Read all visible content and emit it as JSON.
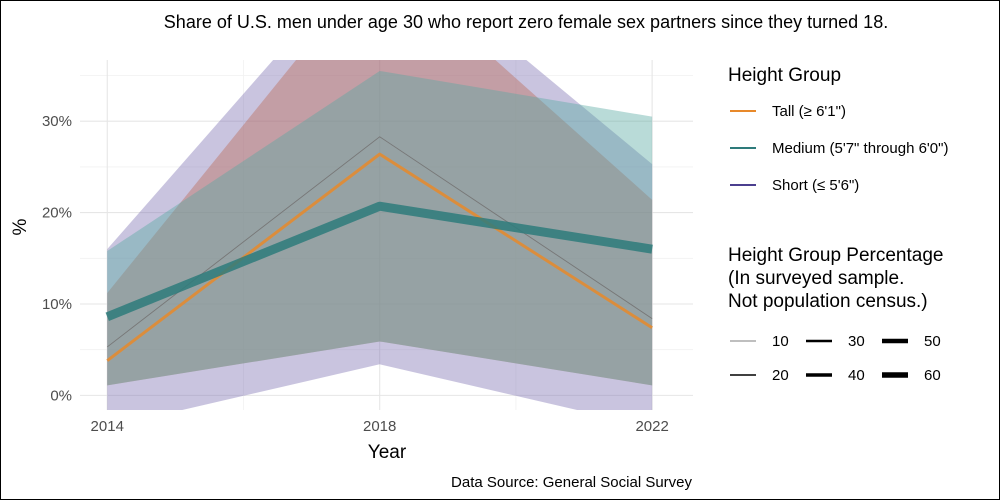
{
  "chart_data": {
    "type": "line",
    "title": "Share of U.S. men under age 30 who report zero female sex partners since they turned 18.",
    "xlabel": "Year",
    "ylabel": "%",
    "caption": "Data Source: General Social Survey",
    "x": [
      2014,
      2018,
      2022
    ],
    "x_ticks": [
      "2014",
      "2018",
      "2022"
    ],
    "xlim": [
      2013.6,
      2022.6
    ],
    "ylim": [
      -1.6,
      36.7
    ],
    "y_ticks": [
      0,
      10,
      20,
      30
    ],
    "y_tick_labels": [
      "0%",
      "10%",
      "20%",
      "30%"
    ],
    "grid": true,
    "legend_position": "right",
    "color_legend_title": "Height Group",
    "size_legend_title": [
      "Height Group Percentage",
      "(In surveyed sample.",
      "Not population census.)"
    ],
    "size_legend_entries": [
      "10",
      "30",
      "50",
      "20",
      "40",
      "60"
    ],
    "overall_line": {
      "values": [
        5.3,
        28.3,
        8.4
      ],
      "color": "#777777"
    },
    "series": [
      {
        "name": "Short (≤ 5'6\")",
        "color": "#4B3F8F",
        "ribbon_color": "#7E73B3",
        "values": [
          null,
          null,
          null
        ],
        "lower": [
          -3.5,
          3.4,
          -3.5
        ],
        "upper": [
          16.0,
          50.0,
          25.3
        ],
        "line_width": 1
      },
      {
        "name": "Tall (≥ 6'1\")",
        "color": "#E8892A",
        "ribbon_color": "#BC6A55",
        "values": [
          3.8,
          26.4,
          7.4
        ],
        "lower": [
          1.1,
          5.9,
          1.1
        ],
        "upper": [
          11.2,
          48.0,
          21.4
        ],
        "line_width": 3
      },
      {
        "name": "Medium (5'7\" through 6'0\")",
        "color": "#2E7B7B",
        "ribbon_color": "#57A9A3",
        "values": [
          8.6,
          20.7,
          16.0
        ],
        "lower": [
          1.1,
          5.9,
          1.1
        ],
        "upper": [
          15.8,
          35.5,
          30.5
        ],
        "line_width": 9
      }
    ],
    "legend_order": [
      1,
      2,
      0
    ]
  }
}
